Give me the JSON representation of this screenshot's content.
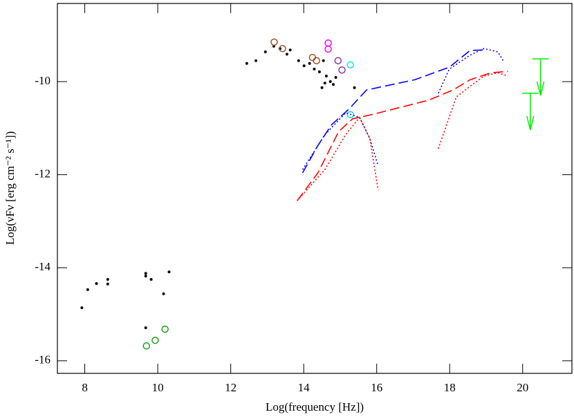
{
  "chart_data": {
    "type": "scatter",
    "x_label": "Log(frequency [Hz])",
    "y_label": "Log(νFν [erg cm⁻² s⁻¹])",
    "xlim": [
      7.25,
      21.35
    ],
    "ylim": [
      -16.27,
      -8.32
    ],
    "xticks": [
      8,
      10,
      12,
      14,
      16,
      18,
      20
    ],
    "yticks": [
      -16,
      -14,
      -12,
      -10
    ],
    "series": [
      {
        "style": "dots",
        "color": "#000000",
        "x": [
          7.92,
          8.08,
          8.32,
          8.63,
          8.63,
          9.67,
          9.67,
          9.82,
          10.16,
          10.31,
          9.67,
          12.44,
          12.69,
          12.95,
          13.18,
          13.35,
          13.54,
          13.63,
          13.86,
          14.01,
          14.16,
          14.29,
          14.43,
          14.54,
          14.62,
          14.73,
          14.81,
          14.88,
          14.5,
          14.58,
          15.39
        ],
        "values": [
          -14.86,
          -14.47,
          -14.34,
          -14.25,
          -14.35,
          -14.12,
          -14.18,
          -14.25,
          -14.56,
          -14.09,
          -15.29,
          -9.61,
          -9.55,
          -9.36,
          -9.24,
          -9.29,
          -9.41,
          -9.32,
          -9.55,
          -9.66,
          -9.61,
          -9.73,
          -9.79,
          -9.55,
          -9.88,
          -10.0,
          -10.06,
          -9.91,
          -10.13,
          -10.03,
          -10.13
        ]
      },
      {
        "style": "circles",
        "color": "#a0522d",
        "x": [
          13.19,
          13.42,
          14.24,
          14.35
        ],
        "values": [
          -9.15,
          -9.29,
          -9.48,
          -9.55
        ]
      },
      {
        "style": "circles",
        "color": "#ff00ff",
        "x": [
          14.67,
          14.67
        ],
        "values": [
          -9.17,
          -9.3
        ]
      },
      {
        "style": "circles",
        "color": "#8b3a9b",
        "x": [
          14.94,
          15.05
        ],
        "values": [
          -9.55,
          -9.75
        ]
      },
      {
        "style": "circles",
        "color": "#00e5e5",
        "x": [
          15.28,
          15.28
        ],
        "values": [
          -9.64,
          -10.71
        ]
      },
      {
        "style": "circles",
        "color": "#1a9e1a",
        "x": [
          9.69,
          9.93,
          10.2
        ],
        "values": [
          -15.68,
          -15.56,
          -15.32
        ]
      },
      {
        "style": "dashed",
        "color": "#0000ff",
        "x": [
          13.97,
          14.39,
          14.77,
          15.24,
          15.72,
          17.04,
          17.99,
          18.56,
          18.94
        ],
        "values": [
          -11.96,
          -11.37,
          -10.92,
          -10.59,
          -10.18,
          -9.96,
          -9.69,
          -9.33,
          -9.32
        ]
      },
      {
        "style": "dotted",
        "color": "#0000ff",
        "x": [
          13.97,
          14.58,
          15.15,
          15.53,
          15.81,
          16.04,
          16.9,
          17.69,
          17.99,
          18.56,
          18.94,
          19.32,
          19.49
        ],
        "values": [
          -11.89,
          -11.14,
          -10.67,
          -10.77,
          -11.22,
          -11.81,
          null,
          -10.25,
          -9.73,
          -9.43,
          -9.29,
          -9.36,
          -9.58
        ]
      },
      {
        "style": "dashed",
        "color": "#ff0000",
        "x": [
          13.82,
          14.39,
          14.96,
          15.34,
          15.91,
          16.66,
          17.42,
          18.09,
          18.56,
          19.13,
          19.6
        ],
        "values": [
          -12.56,
          -11.96,
          -11.07,
          -10.8,
          -10.7,
          -10.55,
          -10.4,
          -10.18,
          -9.96,
          -9.81,
          -9.78
        ]
      },
      {
        "style": "dotted",
        "color": "#ff0000",
        "x": [
          13.82,
          14.58,
          15.15,
          15.53,
          15.81,
          16.04,
          16.9,
          17.69,
          17.95,
          18.18,
          18.56,
          18.94,
          19.32,
          19.6
        ],
        "values": [
          -12.56,
          -11.89,
          -11.14,
          -10.77,
          -11.22,
          -12.33,
          null,
          -11.44,
          -10.85,
          -10.33,
          -10.1,
          -9.88,
          -9.81,
          -9.88
        ]
      },
      {
        "style": "upper_limit",
        "color": "#00ee00",
        "x": [
          20.49,
          20.21
        ],
        "values": [
          -9.51,
          -10.25
        ]
      }
    ]
  }
}
